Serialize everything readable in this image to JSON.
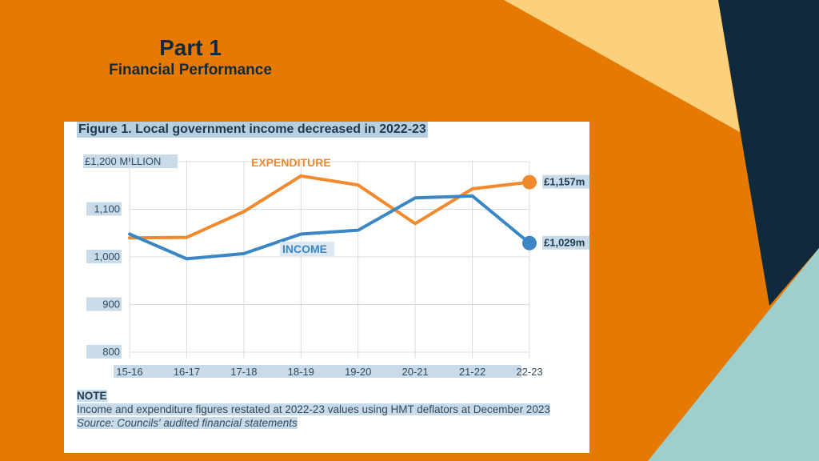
{
  "slide": {
    "title": "Part 1",
    "subtitle": "Financial Performance",
    "colors": {
      "background": "#e67a00",
      "shape_yellow": "#fbd17d",
      "shape_navy": "#0f2a3d",
      "shape_teal": "#9fcfcb"
    }
  },
  "figure": {
    "title": "Figure 1. Local government income decreased in 2022-23",
    "note_heading": "NOTE",
    "note_text": "Income and expenditure figures restated at 2022-23 values using HMT deflators at December 2023",
    "source": "Source: Councils' audited financial statements"
  },
  "chart_data": {
    "type": "line",
    "title": "Figure 1. Local government income decreased in 2022-23",
    "y_unit_label": "£1,200 MILLION",
    "ylim": [
      800,
      1200
    ],
    "y_ticks": [
      800,
      900,
      1000,
      1100,
      1200
    ],
    "y_tick_labels": [
      "800",
      "900",
      "1,000",
      "1,100",
      "£1,200 MILLION"
    ],
    "categories": [
      "15-16",
      "16-17",
      "17-18",
      "18-19",
      "19-20",
      "20-21",
      "21-22",
      "22-23"
    ],
    "series": [
      {
        "name": "EXPENDITURE",
        "color": "#f08a2c",
        "values": [
          1040,
          1041,
          1095,
          1170,
          1151,
          1070,
          1143,
          1157
        ],
        "end_label": "£1,157m"
      },
      {
        "name": "INCOME",
        "color": "#3b86c4",
        "values": [
          1048,
          996,
          1007,
          1048,
          1056,
          1124,
          1128,
          1029
        ],
        "end_label": "£1,029m"
      }
    ],
    "grid": true
  }
}
